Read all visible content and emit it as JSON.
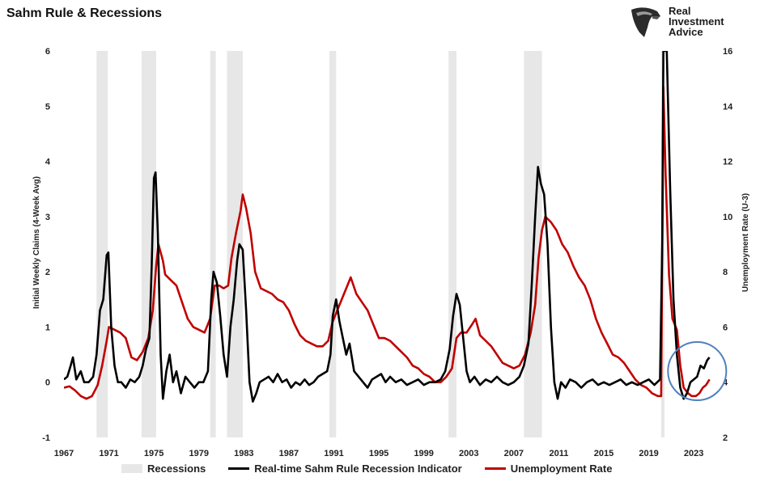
{
  "title": "Sahm Rule & Recessions",
  "logo": {
    "line1": "Real",
    "line2": "Investment",
    "line3": "Advice",
    "icon": "eagle-head-icon"
  },
  "chart_data": {
    "type": "line",
    "x_range": [
      1967,
      2024.5
    ],
    "left_axis": {
      "label": "Initial Weekly Claims (4-Week Avg)",
      "ylim": [
        -1,
        6
      ],
      "ticks": [
        "-1",
        "0",
        "1",
        "2",
        "3",
        "4",
        "5",
        "6"
      ]
    },
    "right_axis": {
      "label": "Unemployment Rate (U-3)",
      "ylim": [
        2,
        16
      ],
      "ticks": [
        "2",
        "4",
        "6",
        "8",
        "10",
        "12",
        "14",
        "16"
      ]
    },
    "x_ticks": [
      "1967",
      "1971",
      "1975",
      "1979",
      "1983",
      "1987",
      "1991",
      "1995",
      "1999",
      "2003",
      "2007",
      "2011",
      "2015",
      "2019",
      "2023"
    ],
    "colors": {
      "sahm": "#000000",
      "unemployment": "#c00000",
      "recession": "#e7e7e7",
      "circle": "#4f81bd"
    },
    "recessions": [
      [
        1969.9,
        1970.9
      ],
      [
        1973.9,
        1975.2
      ],
      [
        1980.0,
        1980.5
      ],
      [
        1981.5,
        1982.9
      ],
      [
        1990.6,
        1991.2
      ],
      [
        2001.2,
        2001.9
      ],
      [
        2007.9,
        2009.5
      ],
      [
        2020.1,
        2020.4
      ]
    ],
    "series": [
      {
        "name": "Real-time Sahm Rule Recession Indicator",
        "axis": "left",
        "points": [
          [
            1967.0,
            0.05
          ],
          [
            1967.3,
            0.1
          ],
          [
            1967.6,
            0.3
          ],
          [
            1967.8,
            0.45
          ],
          [
            1968.1,
            0.05
          ],
          [
            1968.5,
            0.2
          ],
          [
            1968.8,
            0.0
          ],
          [
            1969.2,
            0.0
          ],
          [
            1969.6,
            0.1
          ],
          [
            1969.9,
            0.5
          ],
          [
            1970.2,
            1.3
          ],
          [
            1970.5,
            1.5
          ],
          [
            1970.8,
            2.3
          ],
          [
            1970.95,
            2.35
          ],
          [
            1971.2,
            1.0
          ],
          [
            1971.5,
            0.3
          ],
          [
            1971.8,
            0.0
          ],
          [
            1972.1,
            0.0
          ],
          [
            1972.5,
            -0.1
          ],
          [
            1972.9,
            0.05
          ],
          [
            1973.3,
            0.0
          ],
          [
            1973.7,
            0.1
          ],
          [
            1974.0,
            0.3
          ],
          [
            1974.3,
            0.6
          ],
          [
            1974.6,
            0.8
          ],
          [
            1974.8,
            2.1
          ],
          [
            1975.0,
            3.7
          ],
          [
            1975.15,
            3.8
          ],
          [
            1975.35,
            2.7
          ],
          [
            1975.6,
            0.5
          ],
          [
            1975.8,
            -0.3
          ],
          [
            1976.1,
            0.2
          ],
          [
            1976.4,
            0.5
          ],
          [
            1976.7,
            0.0
          ],
          [
            1977.0,
            0.2
          ],
          [
            1977.4,
            -0.2
          ],
          [
            1977.8,
            0.1
          ],
          [
            1978.2,
            0.0
          ],
          [
            1978.6,
            -0.1
          ],
          [
            1979.0,
            0.0
          ],
          [
            1979.4,
            0.0
          ],
          [
            1979.8,
            0.2
          ],
          [
            1980.1,
            1.5
          ],
          [
            1980.3,
            2.0
          ],
          [
            1980.6,
            1.8
          ],
          [
            1980.9,
            1.2
          ],
          [
            1981.2,
            0.5
          ],
          [
            1981.5,
            0.1
          ],
          [
            1981.8,
            1.0
          ],
          [
            1982.1,
            1.5
          ],
          [
            1982.4,
            2.2
          ],
          [
            1982.6,
            2.5
          ],
          [
            1982.9,
            2.4
          ],
          [
            1983.2,
            1.3
          ],
          [
            1983.5,
            0.0
          ],
          [
            1983.8,
            -0.35
          ],
          [
            1984.1,
            -0.2
          ],
          [
            1984.4,
            0.0
          ],
          [
            1984.8,
            0.05
          ],
          [
            1985.2,
            0.1
          ],
          [
            1985.6,
            0.0
          ],
          [
            1986.0,
            0.15
          ],
          [
            1986.4,
            0.0
          ],
          [
            1986.8,
            0.05
          ],
          [
            1987.2,
            -0.1
          ],
          [
            1987.6,
            0.0
          ],
          [
            1988.0,
            -0.05
          ],
          [
            1988.4,
            0.05
          ],
          [
            1988.8,
            -0.05
          ],
          [
            1989.2,
            0.0
          ],
          [
            1989.6,
            0.1
          ],
          [
            1990.0,
            0.15
          ],
          [
            1990.4,
            0.2
          ],
          [
            1990.7,
            0.5
          ],
          [
            1990.9,
            1.2
          ],
          [
            1991.2,
            1.5
          ],
          [
            1991.5,
            1.1
          ],
          [
            1991.8,
            0.8
          ],
          [
            1992.1,
            0.5
          ],
          [
            1992.4,
            0.7
          ],
          [
            1992.8,
            0.2
          ],
          [
            1993.2,
            0.1
          ],
          [
            1993.6,
            0.0
          ],
          [
            1994.0,
            -0.1
          ],
          [
            1994.4,
            0.05
          ],
          [
            1994.8,
            0.1
          ],
          [
            1995.2,
            0.15
          ],
          [
            1995.6,
            0.0
          ],
          [
            1996.0,
            0.1
          ],
          [
            1996.5,
            0.0
          ],
          [
            1997.0,
            0.05
          ],
          [
            1997.5,
            -0.05
          ],
          [
            1998.0,
            0.0
          ],
          [
            1998.5,
            0.05
          ],
          [
            1999.0,
            -0.05
          ],
          [
            1999.5,
            0.0
          ],
          [
            2000.0,
            0.0
          ],
          [
            2000.5,
            0.05
          ],
          [
            2000.9,
            0.2
          ],
          [
            2001.3,
            0.6
          ],
          [
            2001.6,
            1.2
          ],
          [
            2001.9,
            1.6
          ],
          [
            2002.2,
            1.4
          ],
          [
            2002.5,
            0.8
          ],
          [
            2002.8,
            0.2
          ],
          [
            2003.1,
            0.0
          ],
          [
            2003.5,
            0.1
          ],
          [
            2004.0,
            -0.05
          ],
          [
            2004.5,
            0.05
          ],
          [
            2005.0,
            0.0
          ],
          [
            2005.5,
            0.1
          ],
          [
            2006.0,
            0.0
          ],
          [
            2006.5,
            -0.05
          ],
          [
            2007.0,
            0.0
          ],
          [
            2007.5,
            0.1
          ],
          [
            2007.9,
            0.3
          ],
          [
            2008.3,
            0.7
          ],
          [
            2008.6,
            1.8
          ],
          [
            2008.9,
            3.0
          ],
          [
            2009.15,
            3.9
          ],
          [
            2009.4,
            3.6
          ],
          [
            2009.7,
            3.4
          ],
          [
            2010.0,
            2.5
          ],
          [
            2010.3,
            1.0
          ],
          [
            2010.6,
            0.0
          ],
          [
            2010.9,
            -0.3
          ],
          [
            2011.2,
            0.0
          ],
          [
            2011.6,
            -0.1
          ],
          [
            2012.0,
            0.05
          ],
          [
            2012.5,
            0.0
          ],
          [
            2013.0,
            -0.1
          ],
          [
            2013.5,
            0.0
          ],
          [
            2014.0,
            0.05
          ],
          [
            2014.5,
            -0.05
          ],
          [
            2015.0,
            0.0
          ],
          [
            2015.5,
            -0.05
          ],
          [
            2016.0,
            0.0
          ],
          [
            2016.5,
            0.05
          ],
          [
            2017.0,
            -0.05
          ],
          [
            2017.5,
            0.0
          ],
          [
            2018.0,
            -0.05
          ],
          [
            2018.5,
            0.0
          ],
          [
            2019.0,
            0.05
          ],
          [
            2019.5,
            -0.05
          ],
          [
            2020.0,
            0.05
          ],
          [
            2020.2,
            2.5
          ],
          [
            2020.3,
            6.0
          ],
          [
            2020.6,
            6.0
          ],
          [
            2020.9,
            3.5
          ],
          [
            2021.2,
            1.5
          ],
          [
            2021.5,
            0.5
          ],
          [
            2021.8,
            -0.1
          ],
          [
            2022.1,
            -0.3
          ],
          [
            2022.4,
            -0.2
          ],
          [
            2022.7,
            0.0
          ],
          [
            2023.0,
            0.05
          ],
          [
            2023.3,
            0.1
          ],
          [
            2023.6,
            0.3
          ],
          [
            2023.9,
            0.25
          ],
          [
            2024.2,
            0.4
          ],
          [
            2024.4,
            0.45
          ]
        ]
      },
      {
        "name": "Unemployment Rate",
        "axis": "right",
        "points": [
          [
            1967.0,
            3.8
          ],
          [
            1967.5,
            3.85
          ],
          [
            1968.0,
            3.7
          ],
          [
            1968.5,
            3.5
          ],
          [
            1969.0,
            3.4
          ],
          [
            1969.5,
            3.5
          ],
          [
            1970.0,
            3.9
          ],
          [
            1970.4,
            4.6
          ],
          [
            1970.8,
            5.5
          ],
          [
            1971.0,
            6.0
          ],
          [
            1971.5,
            5.9
          ],
          [
            1972.0,
            5.8
          ],
          [
            1972.5,
            5.6
          ],
          [
            1973.0,
            4.9
          ],
          [
            1973.5,
            4.8
          ],
          [
            1974.0,
            5.1
          ],
          [
            1974.5,
            5.6
          ],
          [
            1974.9,
            6.6
          ],
          [
            1975.2,
            8.2
          ],
          [
            1975.4,
            9.0
          ],
          [
            1975.8,
            8.4
          ],
          [
            1976.0,
            7.9
          ],
          [
            1976.5,
            7.7
          ],
          [
            1977.0,
            7.5
          ],
          [
            1977.5,
            6.9
          ],
          [
            1978.0,
            6.3
          ],
          [
            1978.5,
            6.0
          ],
          [
            1979.0,
            5.9
          ],
          [
            1979.5,
            5.8
          ],
          [
            1980.0,
            6.3
          ],
          [
            1980.4,
            7.5
          ],
          [
            1980.8,
            7.5
          ],
          [
            1981.2,
            7.4
          ],
          [
            1981.6,
            7.5
          ],
          [
            1981.9,
            8.5
          ],
          [
            1982.3,
            9.4
          ],
          [
            1982.7,
            10.2
          ],
          [
            1982.9,
            10.8
          ],
          [
            1983.2,
            10.3
          ],
          [
            1983.6,
            9.4
          ],
          [
            1984.0,
            8.0
          ],
          [
            1984.5,
            7.4
          ],
          [
            1985.0,
            7.3
          ],
          [
            1985.5,
            7.2
          ],
          [
            1986.0,
            7.0
          ],
          [
            1986.5,
            6.9
          ],
          [
            1987.0,
            6.6
          ],
          [
            1987.5,
            6.1
          ],
          [
            1988.0,
            5.7
          ],
          [
            1988.5,
            5.5
          ],
          [
            1989.0,
            5.4
          ],
          [
            1989.5,
            5.3
          ],
          [
            1990.0,
            5.3
          ],
          [
            1990.5,
            5.5
          ],
          [
            1990.9,
            6.2
          ],
          [
            1991.3,
            6.6
          ],
          [
            1991.8,
            7.1
          ],
          [
            1992.3,
            7.6
          ],
          [
            1992.5,
            7.8
          ],
          [
            1993.0,
            7.2
          ],
          [
            1993.5,
            6.9
          ],
          [
            1994.0,
            6.6
          ],
          [
            1994.5,
            6.1
          ],
          [
            1995.0,
            5.6
          ],
          [
            1995.5,
            5.6
          ],
          [
            1996.0,
            5.5
          ],
          [
            1996.5,
            5.3
          ],
          [
            1997.0,
            5.1
          ],
          [
            1997.5,
            4.9
          ],
          [
            1998.0,
            4.6
          ],
          [
            1998.5,
            4.5
          ],
          [
            1999.0,
            4.3
          ],
          [
            1999.5,
            4.2
          ],
          [
            2000.0,
            4.0
          ],
          [
            2000.5,
            4.0
          ],
          [
            2001.0,
            4.2
          ],
          [
            2001.5,
            4.5
          ],
          [
            2001.9,
            5.6
          ],
          [
            2002.3,
            5.8
          ],
          [
            2002.8,
            5.8
          ],
          [
            2003.3,
            6.1
          ],
          [
            2003.6,
            6.3
          ],
          [
            2004.0,
            5.7
          ],
          [
            2004.5,
            5.5
          ],
          [
            2005.0,
            5.3
          ],
          [
            2005.5,
            5.0
          ],
          [
            2006.0,
            4.7
          ],
          [
            2006.5,
            4.6
          ],
          [
            2007.0,
            4.5
          ],
          [
            2007.5,
            4.6
          ],
          [
            2008.0,
            5.0
          ],
          [
            2008.5,
            5.8
          ],
          [
            2008.9,
            6.8
          ],
          [
            2009.2,
            8.5
          ],
          [
            2009.5,
            9.5
          ],
          [
            2009.8,
            10.0
          ],
          [
            2010.3,
            9.8
          ],
          [
            2010.8,
            9.5
          ],
          [
            2011.3,
            9.0
          ],
          [
            2011.8,
            8.7
          ],
          [
            2012.3,
            8.2
          ],
          [
            2012.8,
            7.8
          ],
          [
            2013.3,
            7.5
          ],
          [
            2013.8,
            7.0
          ],
          [
            2014.3,
            6.3
          ],
          [
            2014.8,
            5.8
          ],
          [
            2015.3,
            5.4
          ],
          [
            2015.8,
            5.0
          ],
          [
            2016.3,
            4.9
          ],
          [
            2016.8,
            4.7
          ],
          [
            2017.3,
            4.4
          ],
          [
            2017.8,
            4.1
          ],
          [
            2018.3,
            3.9
          ],
          [
            2018.8,
            3.8
          ],
          [
            2019.3,
            3.6
          ],
          [
            2019.8,
            3.5
          ],
          [
            2020.1,
            3.5
          ],
          [
            2020.3,
            14.7
          ],
          [
            2020.5,
            11.5
          ],
          [
            2020.8,
            7.9
          ],
          [
            2021.1,
            6.3
          ],
          [
            2021.5,
            5.9
          ],
          [
            2021.8,
            4.6
          ],
          [
            2022.1,
            3.8
          ],
          [
            2022.5,
            3.6
          ],
          [
            2022.8,
            3.5
          ],
          [
            2023.2,
            3.5
          ],
          [
            2023.5,
            3.6
          ],
          [
            2023.8,
            3.8
          ],
          [
            2024.1,
            3.9
          ],
          [
            2024.4,
            4.1
          ]
        ]
      }
    ],
    "legend": {
      "placement": "bottom",
      "items": [
        "Recessions",
        "Real-time Sahm Rule Recession Indicator",
        "Unemployment Rate"
      ]
    },
    "annotation": {
      "type": "circle",
      "center": [
        2023.3,
        0.2
      ],
      "color": "#4f81bd"
    }
  }
}
